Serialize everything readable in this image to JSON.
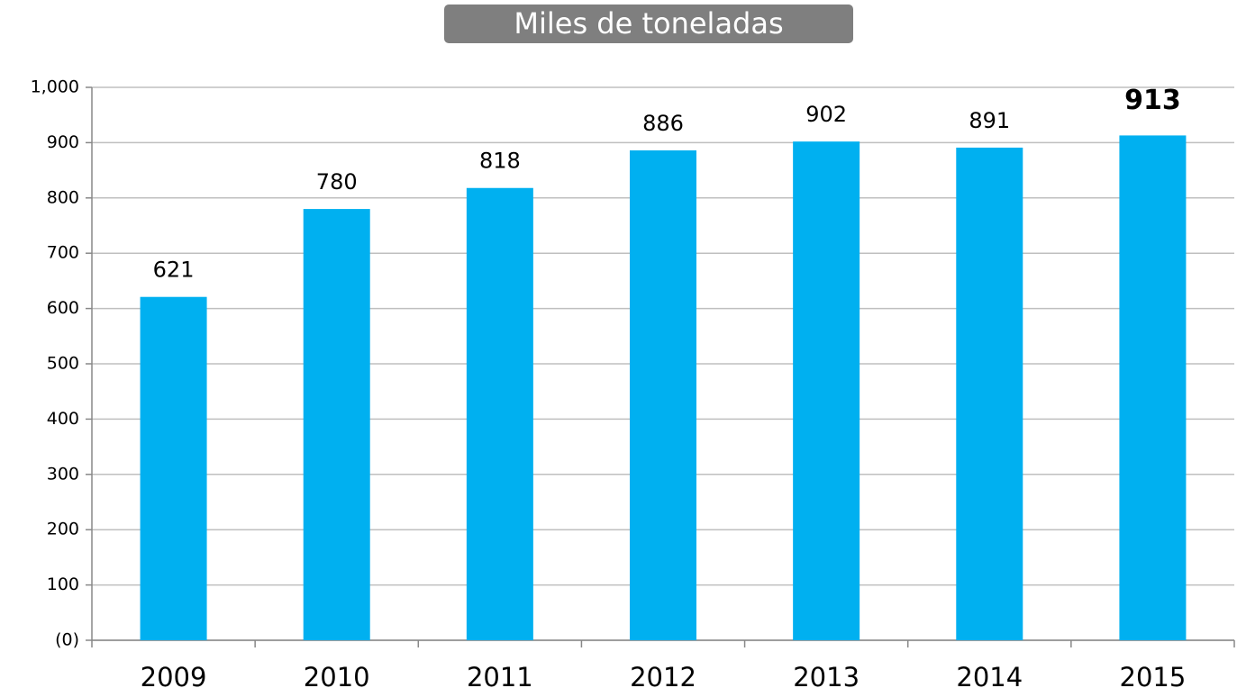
{
  "chart_data": {
    "type": "bar",
    "title": "Miles de toneladas",
    "categories": [
      "2009",
      "2010",
      "2011",
      "2012",
      "2013",
      "2014",
      "2015"
    ],
    "values": [
      621,
      780,
      818,
      886,
      902,
      891,
      913
    ],
    "color": "#00b0f0",
    "ylim": [
      0,
      1000
    ],
    "yticks": [
      {
        "value": 0,
        "label": "(0)"
      },
      100,
      200,
      300,
      400,
      500,
      600,
      700,
      800,
      900,
      {
        "value": 1000,
        "label": "1,000"
      }
    ],
    "grid": true
  }
}
